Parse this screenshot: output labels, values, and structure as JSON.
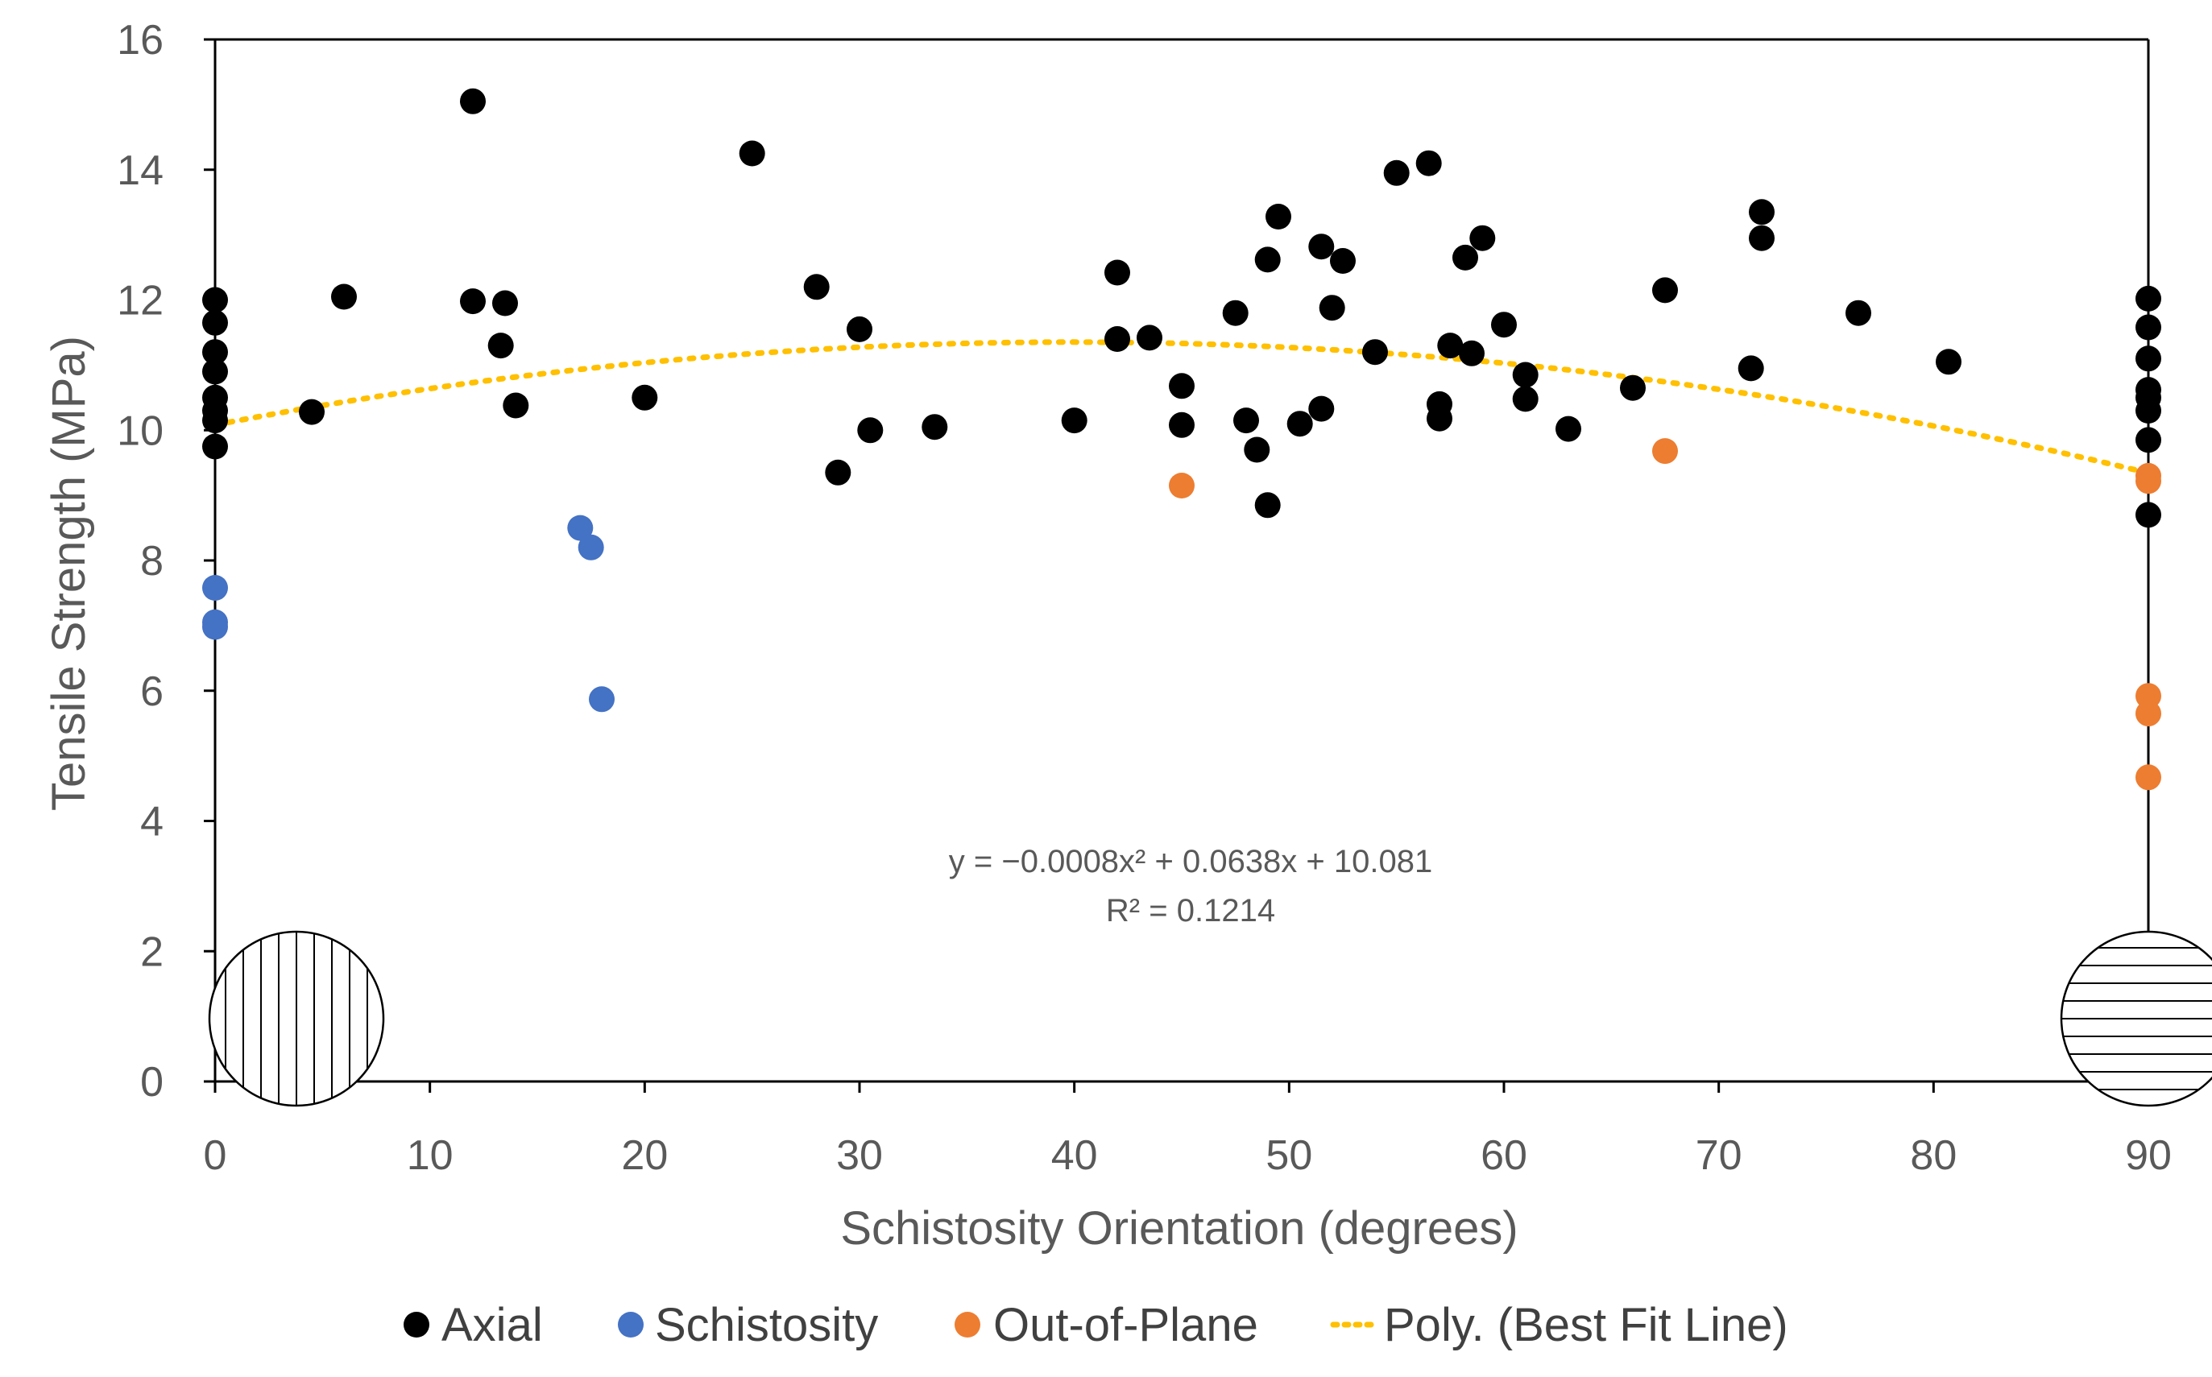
{
  "chart_data": {
    "type": "scatter",
    "title": "",
    "xlabel": "Schistosity Orientation (degrees)",
    "ylabel": "Tensile Strength (MPa)",
    "xlim": [
      0,
      90
    ],
    "ylim": [
      0,
      16
    ],
    "xticks": [
      0,
      10,
      20,
      30,
      40,
      50,
      60,
      70,
      80,
      90
    ],
    "yticks": [
      0,
      2,
      4,
      6,
      8,
      10,
      12,
      14,
      16
    ],
    "xtick_labels": [
      "0",
      "10",
      "20",
      "30",
      "40",
      "50",
      "60",
      "70",
      "80",
      "90"
    ],
    "ytick_labels": [
      "0",
      "2",
      "4",
      "6",
      "8",
      "10",
      "12",
      "14",
      "16"
    ],
    "grid": false,
    "legend_position": "bottom",
    "series": [
      {
        "name": "Axial",
        "color": "#000000",
        "points": [
          [
            0,
            12.0
          ],
          [
            0,
            11.65
          ],
          [
            0,
            11.2
          ],
          [
            0,
            10.9
          ],
          [
            0,
            10.5
          ],
          [
            0,
            10.3
          ],
          [
            0,
            10.15
          ],
          [
            0,
            9.75
          ],
          [
            4.5,
            10.28
          ],
          [
            6.0,
            12.05
          ],
          [
            12.0,
            15.05
          ],
          [
            12.0,
            11.98
          ],
          [
            13.3,
            11.3
          ],
          [
            13.5,
            11.95
          ],
          [
            14.0,
            10.38
          ],
          [
            20.0,
            10.5
          ],
          [
            25.0,
            14.25
          ],
          [
            28.0,
            12.2
          ],
          [
            29.0,
            9.35
          ],
          [
            30.0,
            11.55
          ],
          [
            30.5,
            10.0
          ],
          [
            33.5,
            10.05
          ],
          [
            40.0,
            10.15
          ],
          [
            42.0,
            12.42
          ],
          [
            42.0,
            11.4
          ],
          [
            43.5,
            11.42
          ],
          [
            45.0,
            10.68
          ],
          [
            45.0,
            10.08
          ],
          [
            47.5,
            11.8
          ],
          [
            48.0,
            10.15
          ],
          [
            48.5,
            9.7
          ],
          [
            49.0,
            12.62
          ],
          [
            49.0,
            8.85
          ],
          [
            49.5,
            13.28
          ],
          [
            50.5,
            10.1
          ],
          [
            51.5,
            12.82
          ],
          [
            51.5,
            10.33
          ],
          [
            52.0,
            11.88
          ],
          [
            52.5,
            12.6
          ],
          [
            54.0,
            11.2
          ],
          [
            55.0,
            13.95
          ],
          [
            56.5,
            14.1
          ],
          [
            57.0,
            10.4
          ],
          [
            57.0,
            10.18
          ],
          [
            57.5,
            11.3
          ],
          [
            58.2,
            12.65
          ],
          [
            58.5,
            11.18
          ],
          [
            59.0,
            12.95
          ],
          [
            60.0,
            11.62
          ],
          [
            61.0,
            10.85
          ],
          [
            61.0,
            10.48
          ],
          [
            63.0,
            10.02
          ],
          [
            66.0,
            10.65
          ],
          [
            67.5,
            12.15
          ],
          [
            71.5,
            10.95
          ],
          [
            72.0,
            13.35
          ],
          [
            72.0,
            12.95
          ],
          [
            76.5,
            11.8
          ],
          [
            80.7,
            11.05
          ],
          [
            90,
            12.02
          ],
          [
            90,
            11.58
          ],
          [
            90,
            11.1
          ],
          [
            90,
            10.62
          ],
          [
            90,
            10.5
          ],
          [
            90,
            10.3
          ],
          [
            90,
            9.85
          ],
          [
            90,
            8.7
          ]
        ]
      },
      {
        "name": "Schistosity",
        "color": "#4472C4",
        "points": [
          [
            0,
            7.58
          ],
          [
            0,
            7.05
          ],
          [
            0,
            6.98
          ],
          [
            17.0,
            8.5
          ],
          [
            17.5,
            8.2
          ],
          [
            18.0,
            5.87
          ]
        ]
      },
      {
        "name": "Out-of-Plane",
        "color": "#ED7D31",
        "points": [
          [
            45.0,
            9.15
          ],
          [
            67.5,
            9.68
          ],
          [
            90,
            9.3
          ],
          [
            90,
            9.22
          ],
          [
            90,
            5.92
          ],
          [
            90,
            5.65
          ],
          [
            90,
            4.67
          ]
        ]
      }
    ],
    "trendline": {
      "name": "Poly. (Best Fit Line)",
      "color": "#FFC000",
      "coefficients": [
        -0.0008,
        0.0638,
        10.081
      ],
      "equation": "y = −0.0008x² + 0.0638x + 10.081",
      "r_squared": "R² = 0.1214"
    }
  }
}
